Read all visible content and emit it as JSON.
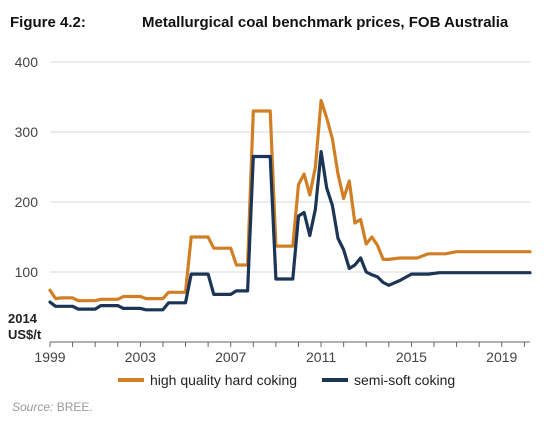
{
  "figure": {
    "label": "Figure 4.2:",
    "title": "Metallurgical coal benchmark prices, FOB Australia",
    "source_label": "Source:",
    "source_text": " BREE."
  },
  "colors": {
    "high_quality": "#d17f24",
    "semi_soft": "#1b3557",
    "grid": "#d9d9d9",
    "axis": "#666666"
  },
  "chart_data": {
    "type": "line",
    "title": "Metallurgical coal benchmark prices, FOB Australia",
    "xlabel": "",
    "ylabel": "2014 US$/t",
    "ylabel_lines": [
      "2014",
      "US$/t"
    ],
    "xlim": [
      1999,
      2020.25
    ],
    "ylim": [
      0,
      400
    ],
    "x_ticks": [
      1999,
      2003,
      2007,
      2011,
      2015,
      2019
    ],
    "y_ticks": [
      100,
      200,
      300,
      400
    ],
    "grid": "horizontal",
    "legend": "bottom",
    "series": [
      {
        "name": "high quality hard coking",
        "color": "#d17f24",
        "points": [
          [
            1999.0,
            74
          ],
          [
            1999.25,
            62
          ],
          [
            1999.5,
            63
          ],
          [
            2000.0,
            63
          ],
          [
            2000.25,
            59
          ],
          [
            2001.0,
            59
          ],
          [
            2001.25,
            61
          ],
          [
            2002.0,
            61
          ],
          [
            2002.25,
            65
          ],
          [
            2003.0,
            65
          ],
          [
            2003.25,
            62
          ],
          [
            2004.0,
            62
          ],
          [
            2004.25,
            71
          ],
          [
            2005.0,
            71
          ],
          [
            2005.25,
            150
          ],
          [
            2006.0,
            150
          ],
          [
            2006.25,
            134
          ],
          [
            2007.0,
            134
          ],
          [
            2007.25,
            110
          ],
          [
            2007.75,
            110
          ],
          [
            2008.0,
            330
          ],
          [
            2008.75,
            330
          ],
          [
            2009.0,
            137
          ],
          [
            2009.75,
            137
          ],
          [
            2010.0,
            225
          ],
          [
            2010.25,
            240
          ],
          [
            2010.5,
            210
          ],
          [
            2010.75,
            250
          ],
          [
            2011.0,
            345
          ],
          [
            2011.25,
            320
          ],
          [
            2011.5,
            290
          ],
          [
            2011.75,
            240
          ],
          [
            2012.0,
            205
          ],
          [
            2012.25,
            230
          ],
          [
            2012.5,
            170
          ],
          [
            2012.75,
            175
          ],
          [
            2013.0,
            140
          ],
          [
            2013.25,
            150
          ],
          [
            2013.5,
            138
          ],
          [
            2013.75,
            118
          ],
          [
            2014.0,
            118
          ],
          [
            2014.5,
            120
          ],
          [
            2015.25,
            120
          ],
          [
            2015.75,
            126
          ],
          [
            2016.5,
            126
          ],
          [
            2017.0,
            129
          ],
          [
            2020.25,
            129
          ]
        ]
      },
      {
        "name": "semi-soft coking",
        "color": "#1b3557",
        "points": [
          [
            1999.0,
            57
          ],
          [
            1999.25,
            51
          ],
          [
            2000.0,
            51
          ],
          [
            2000.25,
            47
          ],
          [
            2001.0,
            47
          ],
          [
            2001.25,
            52
          ],
          [
            2002.0,
            52
          ],
          [
            2002.25,
            48
          ],
          [
            2003.0,
            48
          ],
          [
            2003.25,
            46
          ],
          [
            2004.0,
            46
          ],
          [
            2004.25,
            56
          ],
          [
            2005.0,
            56
          ],
          [
            2005.25,
            97
          ],
          [
            2006.0,
            97
          ],
          [
            2006.25,
            68
          ],
          [
            2007.0,
            68
          ],
          [
            2007.25,
            73
          ],
          [
            2007.75,
            73
          ],
          [
            2008.0,
            265
          ],
          [
            2008.75,
            265
          ],
          [
            2009.0,
            90
          ],
          [
            2009.75,
            90
          ],
          [
            2010.0,
            180
          ],
          [
            2010.25,
            185
          ],
          [
            2010.5,
            152
          ],
          [
            2010.75,
            190
          ],
          [
            2011.0,
            272
          ],
          [
            2011.25,
            220
          ],
          [
            2011.5,
            195
          ],
          [
            2011.75,
            148
          ],
          [
            2012.0,
            132
          ],
          [
            2012.25,
            105
          ],
          [
            2012.5,
            110
          ],
          [
            2012.75,
            120
          ],
          [
            2013.0,
            100
          ],
          [
            2013.25,
            96
          ],
          [
            2013.5,
            93
          ],
          [
            2013.75,
            85
          ],
          [
            2014.0,
            81
          ],
          [
            2014.5,
            88
          ],
          [
            2015.0,
            97
          ],
          [
            2015.75,
            97
          ],
          [
            2016.25,
            99
          ],
          [
            2020.25,
            99
          ]
        ]
      }
    ]
  }
}
